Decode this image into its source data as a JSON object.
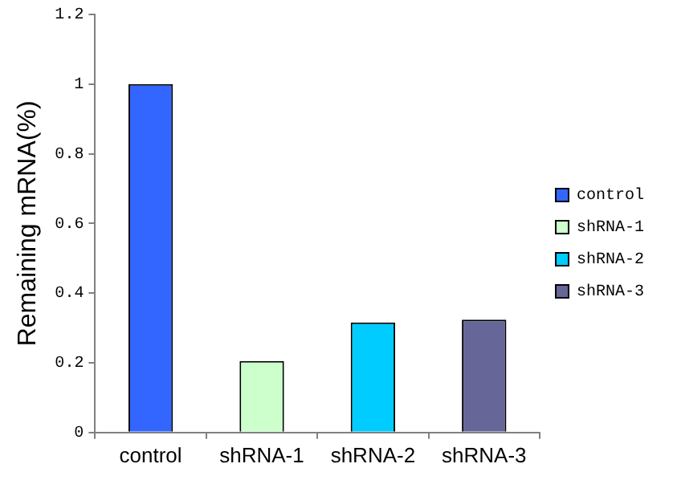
{
  "chart_data": {
    "type": "bar",
    "ylabel": "Remaining mRNA(%)",
    "categories": [
      "control",
      "shRNA-1",
      "shRNA-2",
      "shRNA-3"
    ],
    "series": [
      {
        "name": "control",
        "color": "#3366ff",
        "values": [
          1,
          null,
          null,
          null
        ]
      },
      {
        "name": "shRNA-1",
        "color": "#ccffcc",
        "values": [
          null,
          0.205,
          null,
          null
        ]
      },
      {
        "name": "shRNA-2",
        "color": "#00ccff",
        "values": [
          null,
          null,
          0.316,
          null
        ]
      },
      {
        "name": "shRNA-3",
        "color": "#666699",
        "values": [
          null,
          null,
          null,
          0.324
        ]
      }
    ],
    "ylim": [
      0,
      1.2
    ],
    "yticks": [
      0,
      0.2,
      0.4,
      0.6,
      0.8,
      1,
      1.2
    ],
    "grid": false,
    "legend": "right"
  }
}
